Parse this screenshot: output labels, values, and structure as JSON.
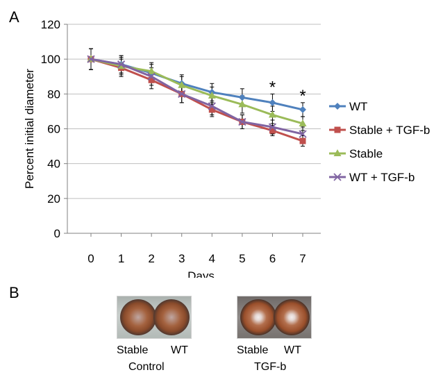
{
  "panels": {
    "a_letter": "A",
    "b_letter": "B"
  },
  "chart_data": {
    "type": "line",
    "xlabel": "Days",
    "ylabel": "Percent initial diameter",
    "x": [
      0,
      1,
      2,
      3,
      4,
      5,
      6,
      7
    ],
    "ylim": [
      0,
      120
    ],
    "yticks": [
      0,
      20,
      40,
      60,
      80,
      100,
      120
    ],
    "grid": true,
    "legend_position": "right",
    "series": [
      {
        "name": "WT",
        "color": "#4f81bd",
        "marker": "diamond",
        "values": [
          100,
          97,
          92,
          86,
          81,
          78,
          75,
          71
        ],
        "errors": [
          6,
          5,
          5,
          5,
          5,
          5,
          5,
          4
        ]
      },
      {
        "name": "Stable + TGF-b",
        "color": "#c0504d",
        "marker": "square",
        "values": [
          100,
          95,
          88,
          80,
          71,
          64,
          59,
          53
        ],
        "errors": [
          6,
          5,
          5,
          5,
          4,
          4,
          3,
          3
        ]
      },
      {
        "name": "Stable",
        "color": "#9bbb59",
        "marker": "triangle",
        "values": [
          100,
          96,
          93,
          85,
          79,
          74,
          68,
          63
        ],
        "errors": [
          6,
          5,
          5,
          5,
          5,
          5,
          5,
          4
        ]
      },
      {
        "name": "WT + TGF-b",
        "color": "#8064a2",
        "marker": "x",
        "values": [
          100,
          97,
          90,
          80,
          73,
          64,
          61,
          57
        ],
        "errors": [
          6,
          5,
          5,
          5,
          5,
          4,
          4,
          4
        ]
      }
    ],
    "annotations": [
      {
        "x": 6,
        "text": "*"
      },
      {
        "x": 7,
        "text": "*"
      }
    ]
  },
  "photos": {
    "control": {
      "labels": [
        "Stable",
        "WT"
      ],
      "group": "Control"
    },
    "tgf": {
      "labels": [
        "Stable",
        "WT"
      ],
      "group": "TGF-b"
    }
  }
}
